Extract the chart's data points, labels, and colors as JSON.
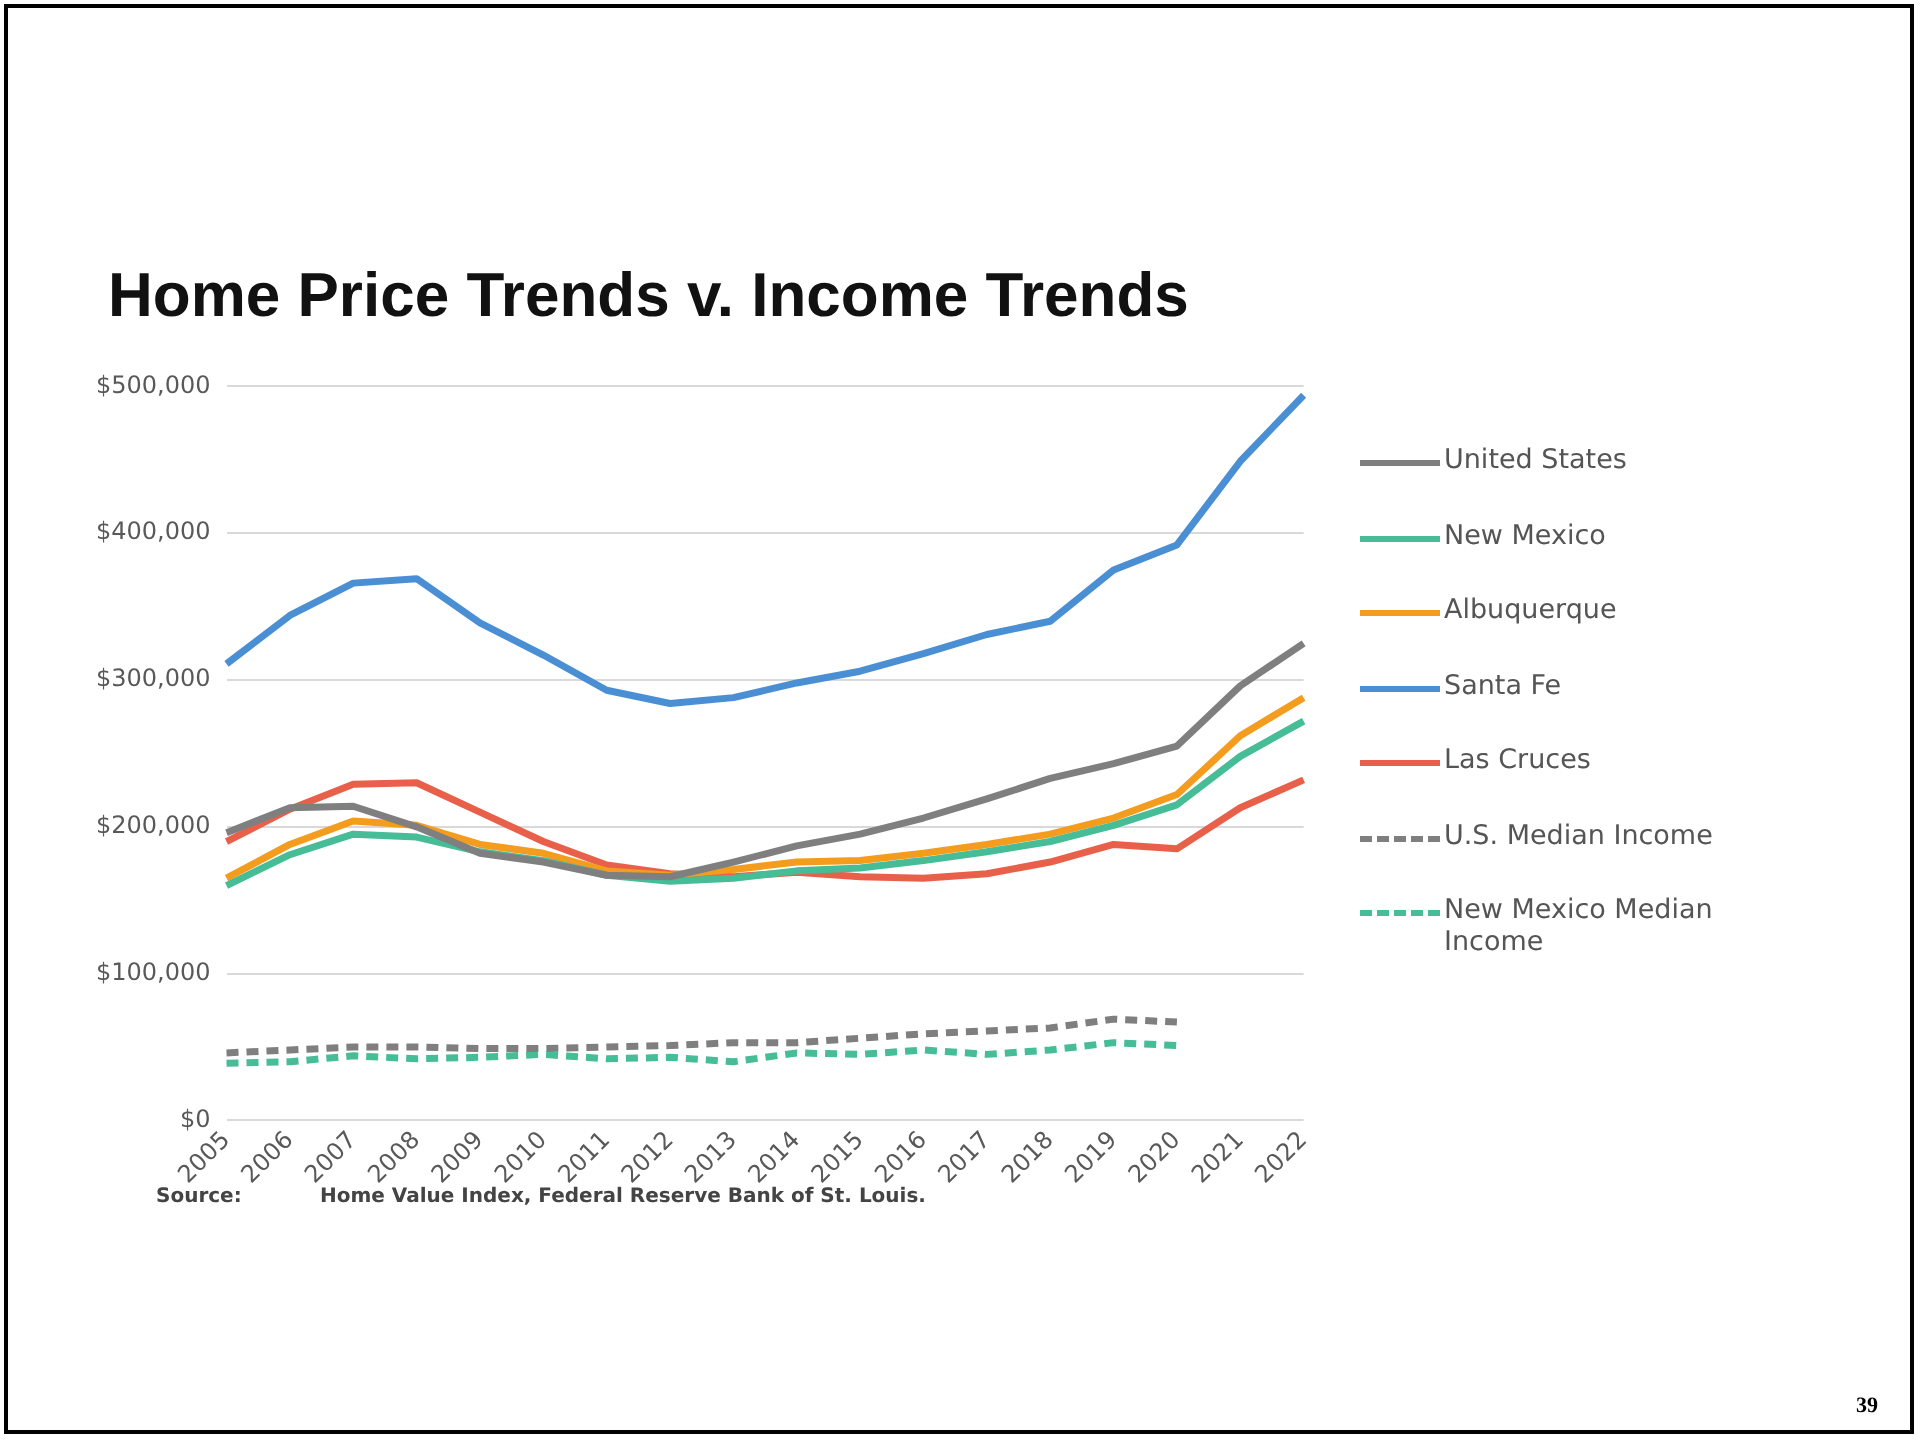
{
  "chart_data": {
    "type": "line",
    "title": "Home Price Trends v. Income Trends",
    "categories": [
      "2005",
      "2006",
      "2007",
      "2008",
      "2009",
      "2010",
      "2011",
      "2012",
      "2013",
      "2014",
      "2015",
      "2016",
      "2017",
      "2018",
      "2019",
      "2020",
      "2021",
      "2022"
    ],
    "series": [
      {
        "name": "United States",
        "color": "#7f7f7f",
        "values": [
          196000,
          213000,
          214000,
          200000,
          182000,
          176000,
          167000,
          166000,
          176000,
          187000,
          195000,
          206000,
          219000,
          233000,
          243000,
          255000,
          296000,
          325000
        ]
      },
      {
        "name": "New Mexico",
        "color": "#46bd97",
        "values": [
          160000,
          181000,
          195000,
          193000,
          183000,
          177000,
          167000,
          163000,
          165000,
          170000,
          172000,
          177000,
          183000,
          190000,
          201000,
          215000,
          248000,
          272000
        ]
      },
      {
        "name": "Albuquerque",
        "color": "#f39c1d",
        "values": [
          165000,
          188000,
          204000,
          201000,
          188000,
          182000,
          170000,
          167000,
          171000,
          176000,
          177000,
          182000,
          188000,
          195000,
          206000,
          222000,
          262000,
          288000
        ]
      },
      {
        "name": "Santa Fe",
        "color": "#4a8fd4",
        "values": [
          311000,
          344000,
          366000,
          369000,
          339000,
          317000,
          293000,
          284000,
          288000,
          298000,
          306000,
          318000,
          331000,
          340000,
          375000,
          392000,
          449000,
          494000
        ]
      },
      {
        "name": "Las Cruces",
        "color": "#e9604a",
        "values": [
          190000,
          212000,
          229000,
          230000,
          210000,
          190000,
          174000,
          168000,
          166000,
          169000,
          166000,
          165000,
          168000,
          176000,
          188000,
          185000,
          213000,
          232000
        ]
      },
      {
        "name": "U.S. Median Income",
        "color": "#7f7f7f",
        "line_style": "dashed",
        "values": [
          46000,
          48000,
          50000,
          50000,
          49000,
          49000,
          50000,
          51000,
          53000,
          53000,
          56000,
          59000,
          61000,
          63000,
          69000,
          67000,
          null,
          null
        ]
      },
      {
        "name": "New Mexico Median Income",
        "color": "#46bd97",
        "line_style": "dashed",
        "values": [
          39000,
          40000,
          44000,
          42000,
          43000,
          45000,
          42000,
          43000,
          40000,
          46000,
          45000,
          48000,
          45000,
          48000,
          53000,
          51000,
          null,
          null
        ]
      }
    ],
    "ylim": [
      0,
      500000
    ],
    "yticks": [
      {
        "value": 0,
        "label": "$0"
      },
      {
        "value": 100000,
        "label": "$100,000"
      },
      {
        "value": 200000,
        "label": "$200,000"
      },
      {
        "value": 300000,
        "label": "$300,000"
      },
      {
        "value": 400000,
        "label": "$400,000"
      },
      {
        "value": 500000,
        "label": "$500,000"
      }
    ],
    "grid": "y",
    "legend": "right",
    "marker": "none",
    "line_style": "solid",
    "annotations": [
      "Source: Home Value Index, Federal Reserve Bank of St. Louis.",
      "39"
    ]
  }
}
